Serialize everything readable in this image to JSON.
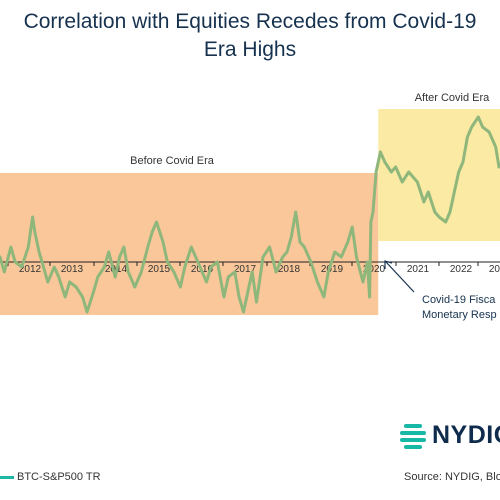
{
  "title_line1": "Correlation with Equities Recedes from Covid-19",
  "title_line2": "Era Highs",
  "logo_text": "NYDIG",
  "source": "Source: NYDIG, Bloo",
  "legend_label": "BTC-S&P500 TR",
  "colors": {
    "title": "#16324f",
    "before_shade": "#f9c79a",
    "after_shade": "#fbeaa4",
    "series": "#8fb77b",
    "legend_swatch": "#1db8a5",
    "logo": "#0f2c4c",
    "logo_icon": "#17b8a6"
  },
  "chart_data": {
    "type": "line",
    "title": "Correlation with Equities Recedes from Covid-19 Era Highs",
    "x_tick_labels": [
      "2012",
      "2013",
      "2014",
      "2015",
      "2016",
      "2017",
      "2018",
      "2019",
      "2020",
      "2021",
      "2022",
      "20"
    ],
    "x_range": [
      2011.5,
      2023.0
    ],
    "series": [
      {
        "name": "BTC-S&P500 TR",
        "x": [
          2011.5,
          2011.6,
          2011.75,
          2011.85,
          2012.0,
          2012.15,
          2012.25,
          2012.3,
          2012.4,
          2012.5,
          2012.6,
          2012.75,
          2012.85,
          2013.0,
          2013.1,
          2013.25,
          2013.4,
          2013.5,
          2013.65,
          2013.75,
          2013.9,
          2014.0,
          2014.15,
          2014.25,
          2014.35,
          2014.45,
          2014.6,
          2014.75,
          2014.9,
          2015.0,
          2015.1,
          2015.25,
          2015.35,
          2015.5,
          2015.65,
          2015.75,
          2015.9,
          2016.0,
          2016.15,
          2016.25,
          2016.35,
          2016.5,
          2016.65,
          2016.75,
          2016.9,
          2017.0,
          2017.1,
          2017.2,
          2017.3,
          2017.4,
          2017.55,
          2017.7,
          2017.85,
          2018.0,
          2018.1,
          2018.2,
          2018.3,
          2018.4,
          2018.5,
          2018.65,
          2018.8,
          2018.95,
          2019.05,
          2019.2,
          2019.35,
          2019.5,
          2019.6,
          2019.7,
          2019.85,
          2019.95,
          2020.0,
          2020.03,
          2020.08,
          2020.15,
          2020.25,
          2020.35,
          2020.5,
          2020.6,
          2020.75,
          2020.9,
          2021.0,
          2021.1,
          2021.25,
          2021.35,
          2021.5,
          2021.6,
          2021.75,
          2021.85,
          2021.95,
          2022.05,
          2022.15,
          2022.25,
          2022.35,
          2022.5,
          2022.6,
          2022.75,
          2022.9,
          2023.0
        ],
        "y": [
          0.05,
          -0.1,
          0.15,
          0.0,
          -0.05,
          0.15,
          0.45,
          0.3,
          0.1,
          -0.05,
          -0.2,
          -0.05,
          -0.15,
          -0.35,
          -0.2,
          -0.25,
          -0.35,
          -0.5,
          -0.3,
          -0.15,
          -0.05,
          0.1,
          -0.15,
          0.05,
          0.15,
          -0.1,
          -0.25,
          -0.1,
          0.15,
          0.3,
          0.4,
          0.2,
          0.0,
          -0.1,
          -0.25,
          -0.05,
          0.15,
          0.05,
          -0.1,
          -0.2,
          -0.05,
          0.0,
          -0.35,
          -0.15,
          -0.1,
          -0.35,
          -0.5,
          -0.3,
          -0.1,
          -0.4,
          0.05,
          0.15,
          -0.1,
          0.05,
          0.1,
          0.25,
          0.5,
          0.2,
          0.15,
          0.0,
          -0.2,
          -0.35,
          -0.1,
          0.1,
          0.05,
          0.2,
          0.35,
          0.05,
          -0.2,
          0.0,
          -0.35,
          0.4,
          0.5,
          0.9,
          1.1,
          1.0,
          0.9,
          0.95,
          0.8,
          0.9,
          0.85,
          0.8,
          0.6,
          0.7,
          0.5,
          0.45,
          0.4,
          0.5,
          0.7,
          0.9,
          1.0,
          1.25,
          1.35,
          1.45,
          1.35,
          1.3,
          1.15,
          0.95
        ]
      }
    ],
    "shaded_periods": [
      {
        "label": "Before Covid Era",
        "from": 2011.5,
        "to": 2020.2
      },
      {
        "label": "After Covid Era",
        "from": 2020.2,
        "to": 2023.0
      }
    ],
    "annotations": [
      "Covid-19 Fisca",
      "Monetary Resp"
    ],
    "legend": "bottom-left",
    "grid": false
  }
}
